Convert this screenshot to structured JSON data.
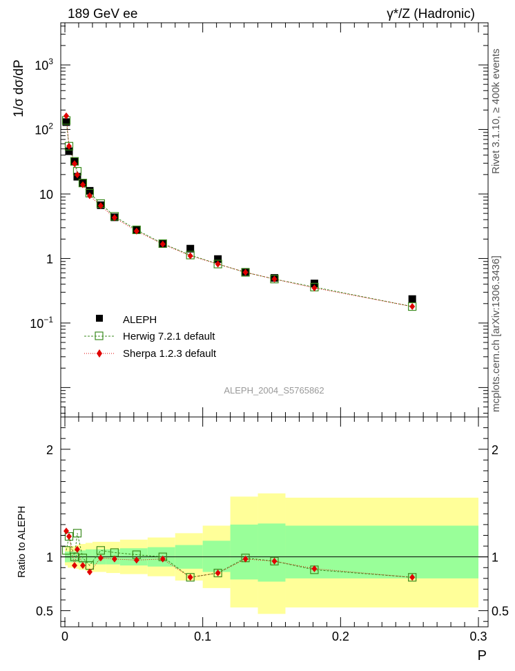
{
  "header": {
    "energy_label": "189 GeV ee",
    "process_label": "γ*/Z (Hadronic)"
  },
  "side_text": {
    "rivet": "Rivet 3.1.10, ≥ 400k events",
    "mcplots": "mcplots.cern.ch [arXiv:1306.3436]"
  },
  "chart_data": [
    {
      "type": "scatter",
      "name": "main",
      "title": "",
      "ylabel": "1/σ dσ/dP",
      "xlabel": "P",
      "yscale": "log",
      "ylim": [
        0.0035,
        4500
      ],
      "xlim": [
        -0.003,
        0.307
      ],
      "watermark": "ALEPH_2004_S5765862",
      "y_ticks": [
        {
          "value": 0.1,
          "label": "10",
          "exp": "−1"
        },
        {
          "value": 1,
          "label": "1",
          "exp": ""
        },
        {
          "value": 10,
          "label": "10",
          "exp": ""
        },
        {
          "value": 100,
          "label": "10",
          "exp": "2"
        },
        {
          "value": 1000,
          "label": "10",
          "exp": "3"
        }
      ],
      "legend": [
        "ALEPH",
        "Herwig 7.2.1 default",
        "Sherpa 1.2.3 default"
      ],
      "x": [
        0.001,
        0.003,
        0.007,
        0.009,
        0.013,
        0.018,
        0.026,
        0.036,
        0.052,
        0.071,
        0.091,
        0.111,
        0.131,
        0.152,
        0.181,
        0.252
      ],
      "series": [
        {
          "name": "ALEPH",
          "color": "#000000",
          "values": [
            130,
            46,
            32,
            18.5,
            15,
            11.2,
            6.7,
            4.35,
            2.75,
            1.7,
            1.42,
            0.98,
            0.62,
            0.5,
            0.41,
            0.235
          ]
        },
        {
          "name": "Herwig 7.2.1 default",
          "color": "#3a8a1e",
          "values": [
            138,
            55,
            32,
            22.5,
            14.8,
            10.3,
            7.1,
            4.5,
            2.78,
            1.7,
            1.13,
            0.82,
            0.61,
            0.48,
            0.36,
            0.18
          ]
        },
        {
          "name": "Sherpa 1.2.3 default",
          "color": "#e00000",
          "values": [
            162,
            55,
            29.5,
            19.8,
            13.9,
            9.4,
            6.6,
            4.3,
            2.66,
            1.67,
            1.1,
            0.82,
            0.61,
            0.48,
            0.35,
            0.18
          ]
        }
      ]
    },
    {
      "type": "scatter",
      "name": "ratio",
      "ylabel": "Ratio to ALEPH",
      "xlabel": "P",
      "ylim": [
        0.35,
        2.3
      ],
      "xlim": [
        -0.003,
        0.307
      ],
      "y_ticks": [
        0.5,
        1,
        2
      ],
      "x_ticks": [
        {
          "value": 0,
          "label": "0"
        },
        {
          "value": 0.1,
          "label": "0.1"
        },
        {
          "value": 0.2,
          "label": "0.2"
        },
        {
          "value": 0.3,
          "label": "0.3"
        }
      ],
      "bands": [
        {
          "x0": 0.0,
          "x1": 0.002,
          "y_low": 0.92,
          "y_high": 1.09,
          "g_low": 0.95,
          "g_high": 1.05
        },
        {
          "x0": 0.002,
          "x1": 0.004,
          "y_low": 0.9,
          "y_high": 1.1,
          "g_low": 0.95,
          "g_high": 1.05
        },
        {
          "x0": 0.004,
          "x1": 0.008,
          "y_low": 0.9,
          "y_high": 1.1,
          "g_low": 0.95,
          "g_high": 1.05
        },
        {
          "x0": 0.008,
          "x1": 0.01,
          "y_low": 0.89,
          "y_high": 1.11,
          "g_low": 0.95,
          "g_high": 1.06
        },
        {
          "x0": 0.01,
          "x1": 0.015,
          "y_low": 0.88,
          "y_high": 1.12,
          "g_low": 0.94,
          "g_high": 1.06
        },
        {
          "x0": 0.015,
          "x1": 0.02,
          "y_low": 0.87,
          "y_high": 1.13,
          "g_low": 0.94,
          "g_high": 1.07
        },
        {
          "x0": 0.02,
          "x1": 0.03,
          "y_low": 0.86,
          "y_high": 1.14,
          "g_low": 0.93,
          "g_high": 1.07
        },
        {
          "x0": 0.03,
          "x1": 0.04,
          "y_low": 0.85,
          "y_high": 1.14,
          "g_low": 0.93,
          "g_high": 1.07
        },
        {
          "x0": 0.04,
          "x1": 0.06,
          "y_low": 0.84,
          "y_high": 1.16,
          "g_low": 0.92,
          "g_high": 1.08
        },
        {
          "x0": 0.06,
          "x1": 0.08,
          "y_low": 0.82,
          "y_high": 1.18,
          "g_low": 0.91,
          "g_high": 1.09
        },
        {
          "x0": 0.08,
          "x1": 0.1,
          "y_low": 0.78,
          "y_high": 1.22,
          "g_low": 0.89,
          "g_high": 1.11
        },
        {
          "x0": 0.1,
          "x1": 0.12,
          "y_low": 0.71,
          "y_high": 1.29,
          "g_low": 0.86,
          "g_high": 1.15
        },
        {
          "x0": 0.12,
          "x1": 0.14,
          "y_low": 0.53,
          "y_high": 1.56,
          "g_low": 0.79,
          "g_high": 1.3
        },
        {
          "x0": 0.14,
          "x1": 0.16,
          "y_low": 0.47,
          "y_high": 1.59,
          "g_low": 0.77,
          "g_high": 1.31
        },
        {
          "x0": 0.16,
          "x1": 0.3,
          "y_low": 0.53,
          "y_high": 1.55,
          "g_low": 0.8,
          "g_high": 1.29
        }
      ],
      "x": [
        0.001,
        0.003,
        0.007,
        0.009,
        0.013,
        0.018,
        0.026,
        0.036,
        0.052,
        0.071,
        0.091,
        0.111,
        0.131,
        0.152,
        0.181,
        0.252
      ],
      "series": [
        {
          "name": "Herwig 7.2.1 default",
          "color": "#3a8a1e",
          "values": [
            1.06,
            1.19,
            1.0,
            1.22,
            0.99,
            0.92,
            1.06,
            1.04,
            1.02,
            1.0,
            0.81,
            0.85,
            0.99,
            0.96,
            0.88,
            0.81
          ]
        },
        {
          "name": "Sherpa 1.2.3 default",
          "color": "#e00000",
          "values": [
            1.24,
            1.19,
            0.92,
            1.07,
            0.92,
            0.86,
            0.99,
            0.98,
            0.97,
            0.98,
            0.81,
            0.85,
            0.98,
            0.96,
            0.89,
            0.81
          ]
        }
      ]
    }
  ]
}
